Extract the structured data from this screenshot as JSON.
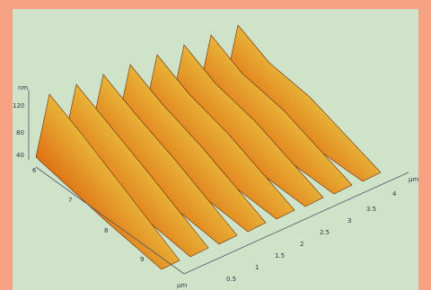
{
  "z_axis": {
    "unit": "nm",
    "ticks": [
      "120",
      "80",
      "40"
    ]
  },
  "y_axis": {
    "ticks": [
      "6",
      "7",
      "8",
      "9"
    ],
    "unit": "µm"
  },
  "x_axis": {
    "ticks": [
      "0.5",
      "1",
      "1.5",
      "2",
      "2.5",
      "3",
      "3.5",
      "4"
    ],
    "unit": "µm"
  }
}
